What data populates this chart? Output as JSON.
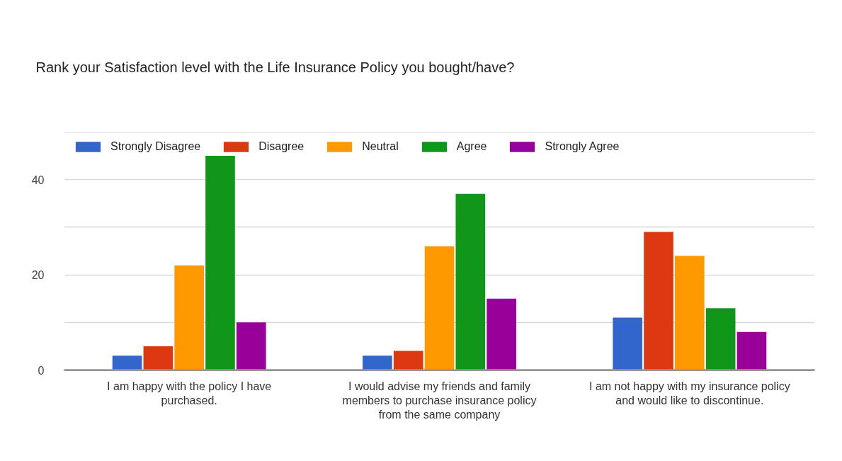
{
  "chart_data": {
    "type": "bar",
    "title": "Rank your Satisfaction level with the Life Insurance Policy you bought/have?",
    "categories": [
      "I am happy with the policy I have purchased.",
      "I would advise my friends and family members to purchase insurance policy from the same company",
      "I am not happy with my insurance policy and would like to discontinue."
    ],
    "series": [
      {
        "name": "Strongly Disagree",
        "color": "#3366cc",
        "values": [
          3,
          3,
          11
        ]
      },
      {
        "name": "Disagree",
        "color": "#dc3912",
        "values": [
          5,
          4,
          29
        ]
      },
      {
        "name": "Neutral",
        "color": "#ff9900",
        "values": [
          22,
          26,
          24
        ]
      },
      {
        "name": "Agree",
        "color": "#109618",
        "values": [
          45,
          37,
          13
        ]
      },
      {
        "name": "Strongly Agree",
        "color": "#990099",
        "values": [
          10,
          15,
          8
        ]
      }
    ],
    "ylim": [
      0,
      50
    ],
    "yticks": [
      0,
      {
        "value": 10,
        "label": null
      },
      20,
      {
        "value": 30,
        "label": null
      },
      40,
      {
        "value": 50,
        "label": null
      }
    ],
    "grid": "y",
    "legend": "top left"
  }
}
